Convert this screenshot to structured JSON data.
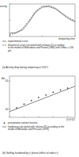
{
  "chart_data": [
    {
      "type": "line",
      "title": "(a) Activity drop during tempering at 150°C",
      "x_label": "tempering time",
      "y_label": "activity",
      "xlim": [
        0,
        10
      ],
      "ylim": [
        0,
        1
      ],
      "xticks": [
        0,
        5,
        10
      ],
      "yticks": [
        0,
        0.5,
        1
      ],
      "tick_labels": false,
      "grid": false,
      "series": [
        {
          "name": "experimental curve",
          "color": "#333333",
          "line_style": "solid",
          "x": [
            0,
            1,
            2,
            3,
            4,
            5,
            6,
            7,
            8,
            9,
            10
          ],
          "values": [
            0.1,
            0.12,
            0.2,
            0.45,
            0.75,
            0.9,
            0.92,
            0.85,
            0.7,
            0.55,
            0.45
          ]
        },
        {
          "name": "theoretical curve calculated with relation (5) according to the model of Mehrabian and Pound (1966) with Dmax = 100 µm",
          "color": "#333333",
          "line_style": "dashed",
          "x": [
            0,
            1,
            2,
            3,
            4,
            5,
            6,
            7,
            8,
            9,
            10
          ],
          "values": [
            0.05,
            0.1,
            0.25,
            0.5,
            0.78,
            0.93,
            0.95,
            0.88,
            0.72,
            0.58,
            0.48
          ]
        }
      ]
    },
    {
      "type": "scatter",
      "title": "(b) Stuffing hardened by γ' phase (effect of radius r)",
      "x_label": "(f r)^1/2",
      "y_label": "Δσ",
      "log": "y",
      "xlim": [
        0,
        4.5
      ],
      "ylim": [
        50,
        1500
      ],
      "xticks": [
        0,
        1,
        2,
        3,
        4
      ],
      "yticks": [
        {
          "value": 100,
          "label": "10²"
        },
        {
          "value": 1000,
          "label": "10³"
        }
      ],
      "tick_labels": "y",
      "grid": false,
      "series": [
        {
          "name": "precipitation volume fraction",
          "type": "scatter",
          "marker": "triangle",
          "color": "#333333",
          "x": [
            0.5,
            1,
            1.5,
            2,
            2.5,
            3,
            3.5,
            4
          ],
          "values": [
            110,
            150,
            200,
            260,
            320,
            400,
            480,
            560
          ]
        },
        {
          "name": "hardening calculated with relation (8) according to the model of Melander and Persson (1978)",
          "type": "line",
          "line_style": "solid",
          "color": "#333333",
          "x": [
            0,
            4.5
          ],
          "values": [
            80,
            650
          ]
        }
      ]
    }
  ]
}
